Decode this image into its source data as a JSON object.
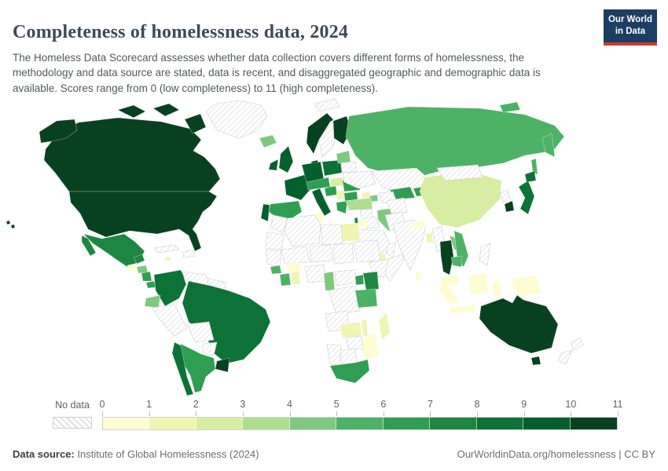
{
  "header": {
    "title": "Completeness of homelessness data, 2024",
    "subtitle": "The Homeless Data Scorecard assesses whether data collection covers different forms of homelessness, the methodology and data source are stated, data is recent, and disaggregated geographic and demographic data is available. Scores range from 0 (low completeness) to 11 (high completeness).",
    "logo": {
      "line1": "Our World",
      "line2": "in Data",
      "bg_color": "#1d3d63",
      "accent_color": "#d23a2c"
    }
  },
  "legend": {
    "no_data_label": "No data",
    "tick_labels": [
      "0",
      "1",
      "2",
      "3",
      "4",
      "5",
      "6",
      "7",
      "8",
      "9",
      "10",
      "11"
    ],
    "colors": [
      "#fdfdd1",
      "#f0f5b2",
      "#d7eda1",
      "#addd8e",
      "#7fc97f",
      "#4eb266",
      "#2f9e52",
      "#1d8742",
      "#0c7235",
      "#03602c",
      "#08411f"
    ],
    "no_data_style": "hatched"
  },
  "footer": {
    "source_label": "Data source:",
    "source_value": " Institute of Global Homelessness (2024)",
    "license": "OurWorldinData.org/homelessness | CC BY"
  },
  "chart_data": {
    "type": "choropleth_map",
    "title": "Completeness of homelessness data, 2024",
    "unit": "Homeless Data Scorecard score",
    "range": [
      0,
      11
    ],
    "legend_bins": 11,
    "no_data": "hatched",
    "values": {
      "United States": 11,
      "Canada": 11,
      "Greenland": null,
      "Mexico": 7,
      "Guatemala": 0,
      "Honduras": 4,
      "Nicaragua": 6,
      "Costa Rica": 6,
      "Panama": 6,
      "Cuba": null,
      "Jamaica": 1,
      "Haiti": null,
      "Colombia": 8,
      "Venezuela": null,
      "Guyana": null,
      "Ecuador": 4,
      "Peru": null,
      "Brazil": 8,
      "Bolivia": null,
      "Paraguay": null,
      "Uruguay": 11,
      "Argentina": 6,
      "Chile": 8,
      "Iceland": 4,
      "Norway": 11,
      "Sweden": null,
      "Finland": 10,
      "Denmark": 11,
      "United Kingdom": 9,
      "Ireland": 9,
      "France": 9,
      "Spain": 6,
      "Portugal": 9,
      "Germany": 9,
      "Poland": 8,
      "Austria": 6,
      "Italy": 9,
      "Croatia": 6,
      "Hungary": 2,
      "Serbia": 1,
      "Romania": 6,
      "Bulgaria": 6,
      "Greece": 6,
      "Lithuania": 4,
      "Belarus": null,
      "Ukraine": null,
      "Svalbard": null,
      "Russia": 5,
      "Kazakhstan": null,
      "Uzbekistan": 6,
      "Turkmenistan": null,
      "Kyrgyzstan": 6,
      "Georgia": 1,
      "Azerbaijan": 4,
      "Turkey": 3,
      "Syria": null,
      "Iraq": null,
      "Iran": 4,
      "Israel": 7,
      "Jordan": 0,
      "Saudi Arabia": null,
      "Yemen": 1,
      "Oman": null,
      "Egypt": 1,
      "Libya": null,
      "Tunisia": 0,
      "Algeria": null,
      "Morocco": null,
      "Mauritania": null,
      "Mali": null,
      "Niger": null,
      "Chad": null,
      "Sudan": null,
      "Ethiopia": null,
      "Somalia": null,
      "Senegal": null,
      "Guinea": 5,
      "Ivory Coast": 5,
      "Ghana": 1,
      "Burkina Faso": 0,
      "Nigeria": null,
      "Cameroon": 4,
      "Central African Republic": null,
      "DR Congo": null,
      "Uganda": 6,
      "Kenya": 7,
      "Tanzania": 5,
      "Angola": null,
      "Zambia": 1,
      "Malawi": 1,
      "Mozambique": 0,
      "Zimbabwe": null,
      "Botswana": null,
      "Namibia": null,
      "South Africa": 6,
      "Madagascar": 1,
      "Afghanistan": null,
      "Pakistan": null,
      "India": null,
      "Nepal": 0,
      "Bangladesh": 1,
      "Sri Lanka": 0,
      "Myanmar": null,
      "Thailand": 11,
      "Laos": 4,
      "Vietnam": 5,
      "Cambodia": 5,
      "Malaysia": 0,
      "Indonesia": 0,
      "Papua New Guinea": 0,
      "Philippines": null,
      "China": 2,
      "Mongolia": null,
      "North Korea": null,
      "South Korea": 11,
      "Japan": 8,
      "Australia": 11,
      "New Zealand": null
    }
  }
}
